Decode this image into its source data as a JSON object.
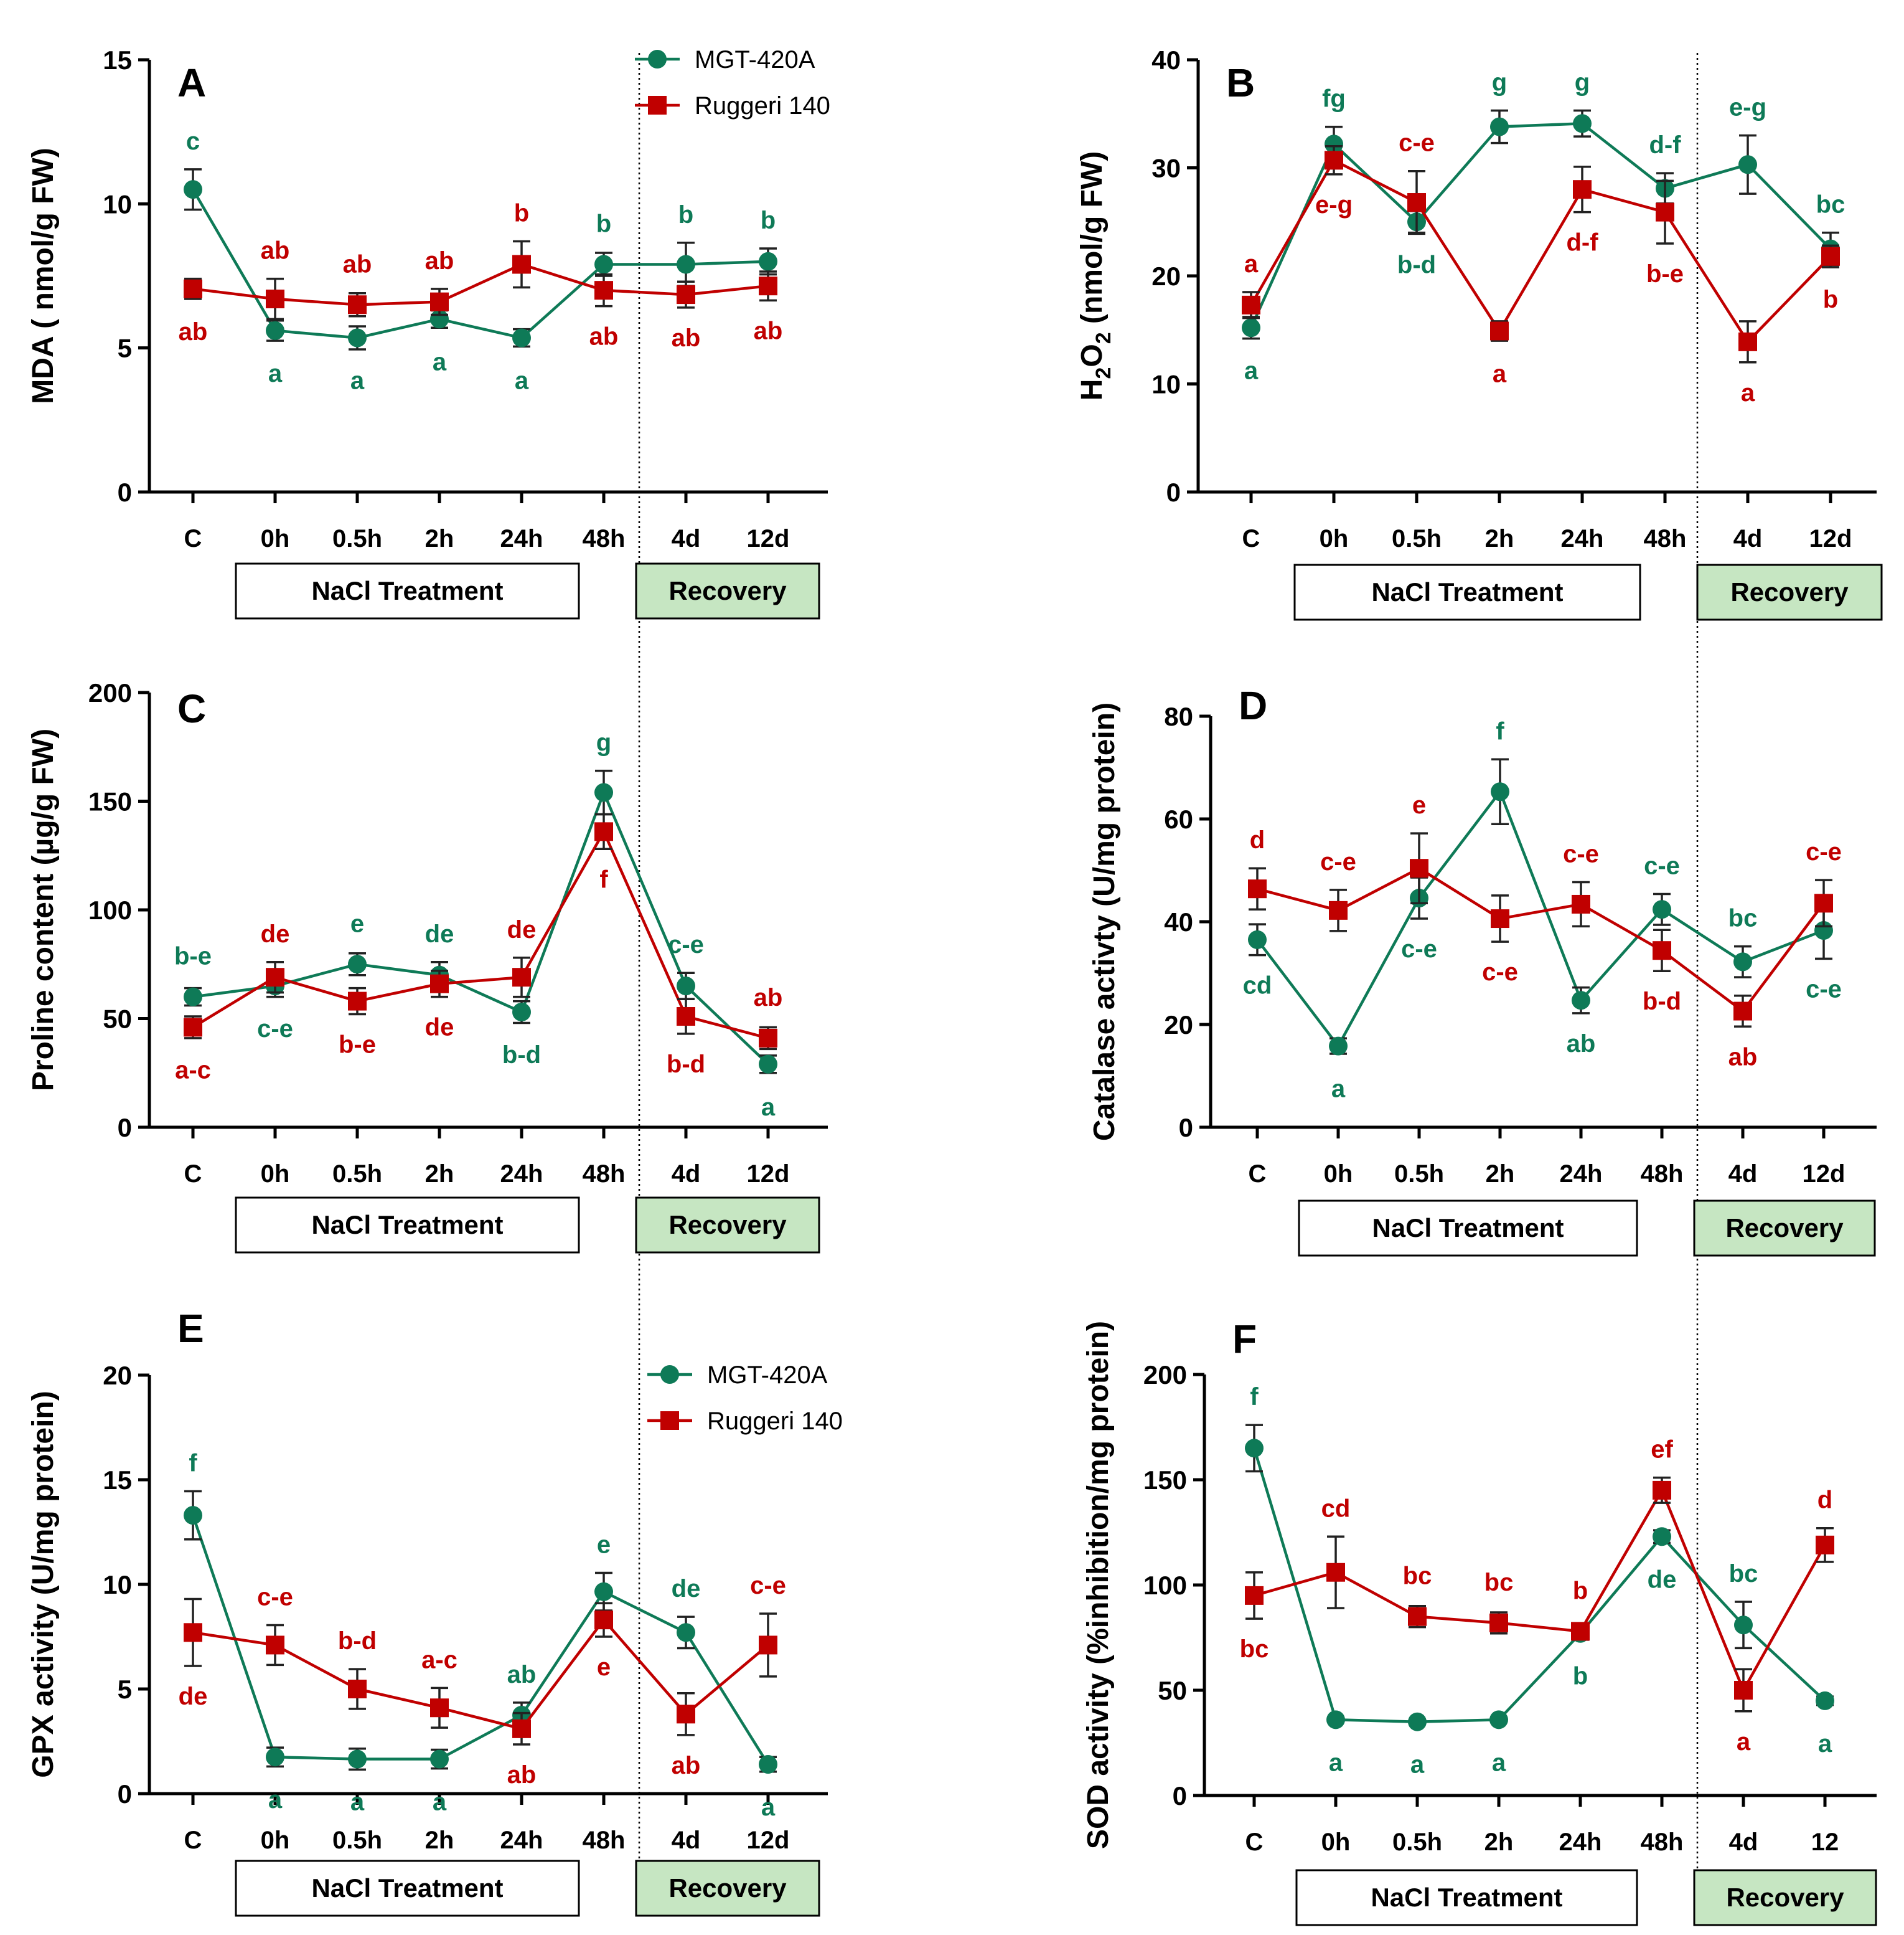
{
  "colors": {
    "green": "#0e7a57",
    "red": "#c00000",
    "recovery_fill": "#c6e6c2"
  },
  "legend": {
    "series1": "MGT-420A",
    "series2": "Ruggeri 140"
  },
  "period_labels": {
    "treatment": "NaCl Treatment",
    "recovery": "Recovery"
  },
  "chart_data": [
    {
      "panel": "A",
      "type": "line",
      "ylabel": "MDA ( nmol/g FW)",
      "categories": [
        "C",
        "0h",
        "0.5h",
        "2h",
        "24h",
        "48h",
        "4d",
        "12d"
      ],
      "ylim": [
        0,
        15
      ],
      "yticks": [
        0,
        5,
        10,
        15
      ],
      "legend": true,
      "series": [
        {
          "name": "MGT-420A",
          "values": [
            10.5,
            5.6,
            5.35,
            6.0,
            5.35,
            7.9,
            7.9,
            8.0
          ],
          "errors": [
            0.7,
            0.35,
            0.4,
            0.3,
            0.3,
            0.4,
            0.75,
            0.45
          ],
          "letters": [
            "c",
            "a",
            "a",
            "a",
            "a",
            "b",
            "b",
            "b"
          ],
          "letter_pos": [
            "above",
            "below",
            "below",
            "below",
            "below",
            "above",
            "above",
            "above"
          ]
        },
        {
          "name": "Ruggeri 140",
          "values": [
            7.05,
            6.7,
            6.5,
            6.6,
            7.9,
            7.0,
            6.85,
            7.15
          ],
          "errors": [
            0.35,
            0.7,
            0.4,
            0.45,
            0.8,
            0.55,
            0.45,
            0.5
          ],
          "letters": [
            "ab",
            "ab",
            "ab",
            "ab",
            "b",
            "ab",
            "ab",
            "ab"
          ],
          "letter_pos": [
            "below",
            "above",
            "above",
            "above",
            "above",
            "below",
            "below",
            "below"
          ]
        }
      ]
    },
    {
      "panel": "B",
      "type": "line",
      "ylabel": "H2O2 (nmol/g FW)",
      "categories": [
        "C",
        "0h",
        "0.5h",
        "2h",
        "24h",
        "48h",
        "4d",
        "12d"
      ],
      "ylim": [
        0,
        40
      ],
      "yticks": [
        0,
        10,
        20,
        30,
        40
      ],
      "legend": false,
      "series": [
        {
          "name": "MGT-420A",
          "values": [
            15.2,
            32.2,
            25.0,
            33.8,
            34.1,
            28.1,
            30.3,
            22.5
          ],
          "errors": [
            1.0,
            1.6,
            1.0,
            1.5,
            1.2,
            1.4,
            2.7,
            1.5
          ],
          "letters": [
            "a",
            "fg",
            "b-d",
            "g",
            "g",
            "d-f",
            "e-g",
            "bc"
          ],
          "letter_pos": [
            "below",
            "above",
            "below",
            "above",
            "above",
            "above",
            "above",
            "above"
          ]
        },
        {
          "name": "Ruggeri 140",
          "values": [
            17.3,
            30.7,
            26.8,
            14.9,
            28.0,
            25.9,
            13.9,
            21.8
          ],
          "errors": [
            1.2,
            1.3,
            2.9,
            0.9,
            2.1,
            2.9,
            1.9,
            1.0
          ],
          "letters": [
            "a",
            "e-g",
            "c-e",
            "a",
            "d-f",
            "b-e",
            "a",
            "b"
          ],
          "letter_pos": [
            "above",
            "below",
            "above",
            "below",
            "below",
            "below",
            "below",
            "below"
          ]
        }
      ]
    },
    {
      "panel": "C",
      "type": "line",
      "ylabel": "Proline content (µg/g FW)",
      "categories": [
        "C",
        "0h",
        "0.5h",
        "2h",
        "24h",
        "48h",
        "4d",
        "12d"
      ],
      "ylim": [
        0,
        200
      ],
      "yticks": [
        0,
        50,
        100,
        150,
        200
      ],
      "legend": false,
      "series": [
        {
          "name": "MGT-420A",
          "values": [
            60,
            65,
            75,
            70,
            53,
            154,
            65,
            29
          ],
          "errors": [
            4,
            5,
            5,
            6,
            5,
            10,
            6,
            4
          ],
          "letters": [
            "b-e",
            "c-e",
            "e",
            "de",
            "b-d",
            "g",
            "c-e",
            "a"
          ],
          "letter_pos": [
            "above",
            "below",
            "above",
            "above",
            "below",
            "above",
            "above",
            "below"
          ]
        },
        {
          "name": "Ruggeri 140",
          "values": [
            46,
            69,
            58,
            66,
            69,
            136,
            51,
            41
          ],
          "errors": [
            5,
            7,
            6,
            6,
            9,
            8,
            8,
            5
          ],
          "letters": [
            "a-c",
            "de",
            "b-e",
            "de",
            "de",
            "f",
            "b-d",
            "ab"
          ],
          "letter_pos": [
            "below",
            "above",
            "below",
            "below",
            "above",
            "below",
            "below",
            "above"
          ]
        }
      ]
    },
    {
      "panel": "D",
      "type": "line",
      "ylabel": "Catalase activty (U/mg protein)",
      "categories": [
        "C",
        "0h",
        "0.5h",
        "2h",
        "24h",
        "48h",
        "4d",
        "12d"
      ],
      "ylim": [
        0,
        80
      ],
      "yticks": [
        0,
        20,
        40,
        60,
        80
      ],
      "legend": false,
      "series": [
        {
          "name": "MGT-420A",
          "values": [
            36.5,
            15.8,
            44.6,
            65.3,
            24.7,
            42.4,
            32.2,
            38.3
          ],
          "errors": [
            3.0,
            1.5,
            4.0,
            6.3,
            2.5,
            3.0,
            3.0,
            5.5
          ],
          "letters": [
            "cd",
            "a",
            "c-e",
            "f",
            "ab",
            "c-e",
            "bc",
            "c-e"
          ],
          "letter_pos": [
            "below",
            "below",
            "below",
            "above",
            "below",
            "above",
            "above",
            "below"
          ]
        },
        {
          "name": "Ruggeri 140",
          "values": [
            46.4,
            42.2,
            50.4,
            40.6,
            43.4,
            34.4,
            22.6,
            43.6
          ],
          "errors": [
            4.0,
            4.0,
            6.8,
            4.5,
            4.3,
            4.0,
            3.0,
            4.5
          ],
          "letters": [
            "d",
            "c-e",
            "e",
            "c-e",
            "c-e",
            "b-d",
            "ab",
            "c-e"
          ],
          "letter_pos": [
            "above",
            "above",
            "above",
            "below",
            "above",
            "below",
            "below",
            "above"
          ]
        }
      ]
    },
    {
      "panel": "E",
      "type": "line",
      "ylabel": "GPX activity (U/mg protein)",
      "categories": [
        "C",
        "0h",
        "0.5h",
        "2h",
        "24h",
        "48h",
        "4d",
        "12d"
      ],
      "ylim": [
        0,
        20
      ],
      "yticks": [
        0,
        5,
        10,
        15,
        20
      ],
      "legend": true,
      "series": [
        {
          "name": "MGT-420A",
          "values": [
            13.3,
            1.75,
            1.65,
            1.65,
            3.75,
            9.65,
            7.7,
            1.4
          ],
          "errors": [
            1.15,
            0.45,
            0.5,
            0.45,
            0.6,
            0.9,
            0.75,
            0.35
          ],
          "letters": [
            "f",
            "a",
            "a",
            "a",
            "ab",
            "e",
            "de",
            "a"
          ],
          "letter_pos": [
            "above",
            "below",
            "below",
            "below",
            "above",
            "above",
            "above",
            "below"
          ]
        },
        {
          "name": "Ruggeri 140",
          "values": [
            7.7,
            7.1,
            5.0,
            4.1,
            3.1,
            8.3,
            3.8,
            7.1
          ],
          "errors": [
            1.6,
            0.95,
            0.95,
            0.95,
            0.75,
            0.8,
            1.0,
            1.5
          ],
          "letters": [
            "de",
            "c-e",
            "b-d",
            "a-c",
            "ab",
            "e",
            "ab",
            "c-e"
          ],
          "letter_pos": [
            "below",
            "above",
            "above",
            "above",
            "below",
            "below",
            "below",
            "above"
          ]
        }
      ]
    },
    {
      "panel": "F",
      "type": "line",
      "ylabel": "SOD activity (%inhibition/mg protein)",
      "categories": [
        "C",
        "0h",
        "0.5h",
        "2h",
        "24h",
        "48h",
        "4d",
        "12"
      ],
      "ylim": [
        0,
        200
      ],
      "yticks": [
        0,
        50,
        100,
        150,
        200
      ],
      "legend": false,
      "series": [
        {
          "name": "MGT-420A",
          "values": [
            165,
            36,
            35,
            36,
            77,
            123,
            81,
            45
          ],
          "errors": [
            11,
            1,
            1,
            1,
            3,
            3,
            11,
            2
          ],
          "letters": [
            "f",
            "a",
            "a",
            "a",
            "b",
            "de",
            "bc",
            "a"
          ],
          "letter_pos": [
            "above",
            "below",
            "below",
            "below",
            "below",
            "below",
            "above",
            "below"
          ]
        },
        {
          "name": "Ruggeri 140",
          "values": [
            95,
            106,
            85,
            82,
            78,
            145,
            50,
            119
          ],
          "errors": [
            11,
            17,
            5,
            5,
            3,
            6,
            10,
            8
          ],
          "letters": [
            "bc",
            "cd",
            "bc",
            "bc",
            "b",
            "ef",
            "a",
            "d"
          ],
          "letter_pos": [
            "below",
            "above",
            "above",
            "above",
            "above",
            "above",
            "below",
            "above"
          ]
        }
      ]
    }
  ]
}
